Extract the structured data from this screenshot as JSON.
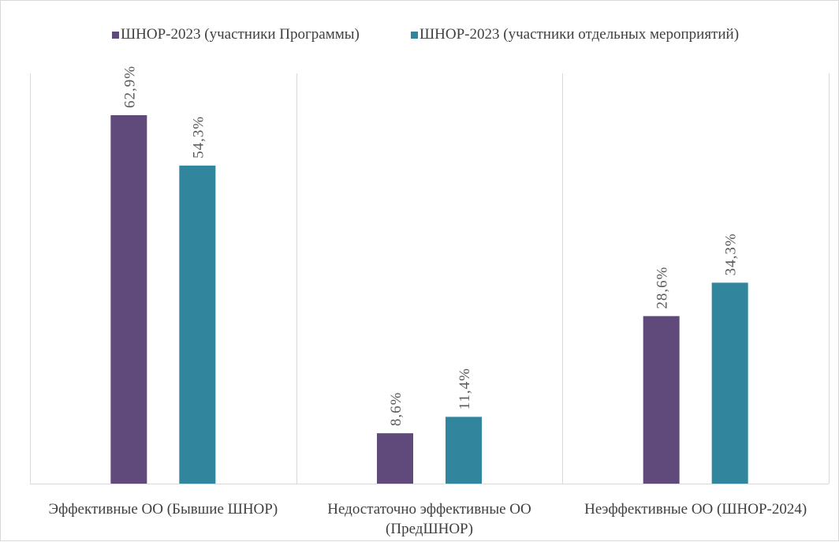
{
  "chart_data": {
    "type": "bar",
    "categories": [
      [
        "Эффективные ОО (Бывшие ШНОР)"
      ],
      [
        "Недостаточно эффективные ОО",
        "(ПредШНОР)"
      ],
      [
        "Неэффективные ОО (ШНОР-2024)"
      ]
    ],
    "series": [
      {
        "name": "ШНОР-2023 (участники Программы)",
        "color": "#604a7b",
        "values": [
          62.9,
          8.6,
          28.6
        ],
        "labels": [
          "62,9%",
          "8,6%",
          "28,6%"
        ]
      },
      {
        "name": "ШНОР-2023 (участники отдельных мероприятий)",
        "color": "#31859c",
        "values": [
          54.3,
          11.4,
          34.3
        ],
        "labels": [
          "54,3%",
          "11,4%",
          "34,3%"
        ]
      }
    ],
    "ylim": [
      0,
      70
    ],
    "grid": "vertical category separators",
    "legend_position": "top",
    "data_labels": "rotated vertical, above bars",
    "title": "",
    "xlabel": "",
    "ylabel": ""
  }
}
